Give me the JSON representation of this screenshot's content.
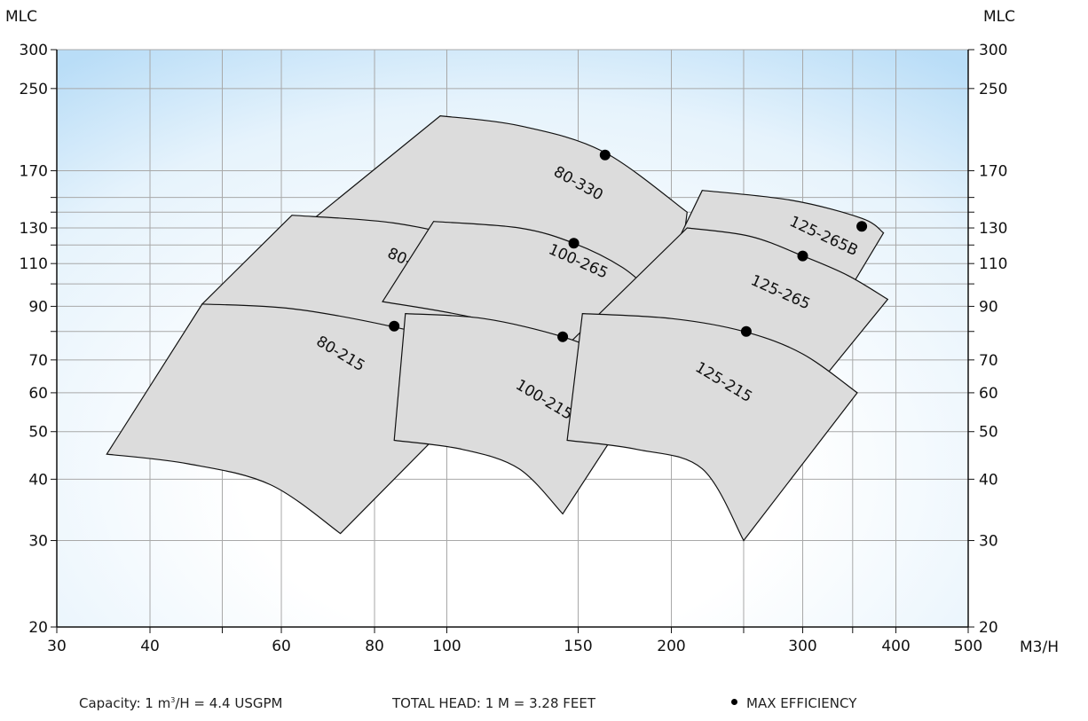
{
  "chart_data": {
    "type": "area",
    "y_unit_left": "MLC",
    "y_unit_right": "MLC",
    "x_unit": "M3/H",
    "x_scale": "log",
    "y_scale": "log",
    "xlim": [
      30,
      500
    ],
    "ylim": [
      20,
      300
    ],
    "x_ticks": [
      {
        "value": 30,
        "label": "30"
      },
      {
        "value": 40,
        "label": "40"
      },
      {
        "value": 50,
        "label": ""
      },
      {
        "value": 60,
        "label": "60"
      },
      {
        "value": 80,
        "label": "80"
      },
      {
        "value": 100,
        "label": "100"
      },
      {
        "value": 150,
        "label": "150"
      },
      {
        "value": 200,
        "label": "200"
      },
      {
        "value": 250,
        "label": ""
      },
      {
        "value": 300,
        "label": "300"
      },
      {
        "value": 350,
        "label": ""
      },
      {
        "value": 400,
        "label": "400"
      },
      {
        "value": 500,
        "label": "500"
      }
    ],
    "y_ticks": [
      {
        "value": 20,
        "label": "20"
      },
      {
        "value": 30,
        "label": "30"
      },
      {
        "value": 40,
        "label": "40"
      },
      {
        "value": 50,
        "label": "50"
      },
      {
        "value": 60,
        "label": "60"
      },
      {
        "value": 70,
        "label": "70"
      },
      {
        "value": 80,
        "label": ""
      },
      {
        "value": 90,
        "label": "90"
      },
      {
        "value": 100,
        "label": ""
      },
      {
        "value": 110,
        "label": "110"
      },
      {
        "value": 120,
        "label": ""
      },
      {
        "value": 130,
        "label": "130"
      },
      {
        "value": 140,
        "label": ""
      },
      {
        "value": 150,
        "label": ""
      },
      {
        "value": 170,
        "label": "170"
      },
      {
        "value": 250,
        "label": "250"
      },
      {
        "value": 300,
        "label": "300"
      }
    ],
    "grid": true,
    "series": [
      {
        "name": "80-330",
        "label_pos": [
          150,
          160
        ],
        "label_angle": 29,
        "top": [
          [
            98,
            220
          ],
          [
            125,
            210
          ],
          [
            162,
            186
          ],
          [
            210,
            140
          ]
        ],
        "bottom": [
          [
            62,
            125
          ],
          [
            88,
            112
          ],
          [
            140,
            78
          ],
          [
            195,
            58
          ]
        ],
        "efficiency_point": [
          163,
          183
        ]
      },
      {
        "name": "125-265B",
        "label_pos": [
          320,
          125
        ],
        "label_angle": 25,
        "top": [
          [
            220,
            155
          ],
          [
            290,
            148
          ],
          [
            360,
            136
          ],
          [
            385,
            127
          ]
        ],
        "bottom": [
          [
            200,
            115
          ],
          [
            250,
            105
          ],
          [
            300,
            95
          ],
          [
            330,
            86
          ]
        ],
        "efficiency_point": [
          360,
          131
        ]
      },
      {
        "name": "80-265",
        "label_pos": [
          90,
          110
        ],
        "label_angle": 24,
        "top": [
          [
            62,
            138
          ],
          [
            85,
            133
          ],
          [
            112,
            121
          ],
          [
            140,
            106
          ],
          [
            165,
            95
          ]
        ],
        "bottom": [
          [
            47,
            91
          ],
          [
            65,
            85
          ],
          [
            90,
            74
          ],
          [
            120,
            66
          ]
        ],
        "efficiency_point": [
          112,
          121
        ]
      },
      {
        "name": "100-265",
        "label_pos": [
          150,
          111
        ],
        "label_angle": 24,
        "top": [
          [
            96,
            134
          ],
          [
            125,
            130
          ],
          [
            148,
            121
          ],
          [
            172,
            108
          ],
          [
            190,
            95
          ]
        ],
        "bottom": [
          [
            82,
            92
          ],
          [
            110,
            85
          ],
          [
            150,
            74
          ],
          [
            175,
            65
          ]
        ],
        "efficiency_point": [
          148,
          121
        ]
      },
      {
        "name": "125-265",
        "label_pos": [
          280,
          96
        ],
        "label_angle": 24,
        "top": [
          [
            210,
            130
          ],
          [
            255,
            125
          ],
          [
            300,
            114
          ],
          [
            345,
            104
          ],
          [
            390,
            93
          ]
        ],
        "bottom": [
          [
            145,
            75
          ],
          [
            180,
            70
          ],
          [
            240,
            63
          ],
          [
            300,
            57
          ]
        ],
        "efficiency_point": [
          300,
          114
        ]
      },
      {
        "name": "80-215",
        "label_pos": [
          72,
          72
        ],
        "label_angle": 31,
        "top": [
          [
            47,
            91
          ],
          [
            62,
            89
          ],
          [
            84,
            82
          ],
          [
            105,
            75
          ],
          [
            120,
            68
          ]
        ],
        "bottom": [
          [
            35,
            45
          ],
          [
            45,
            43
          ],
          [
            58,
            39
          ],
          [
            72,
            31
          ]
        ],
        "efficiency_point": [
          85,
          82
        ]
      },
      {
        "name": "100-215",
        "label_pos": [
          135,
          58
        ],
        "label_angle": 31,
        "top": [
          [
            88,
            87
          ],
          [
            112,
            85
          ],
          [
            143,
            78
          ],
          [
            165,
            71
          ],
          [
            185,
            62
          ]
        ],
        "bottom": [
          [
            85,
            48
          ],
          [
            105,
            46
          ],
          [
            125,
            42
          ],
          [
            143,
            34
          ]
        ],
        "efficiency_point": [
          143,
          78
        ]
      },
      {
        "name": "125-215",
        "label_pos": [
          235,
          63
        ],
        "label_angle": 31,
        "top": [
          [
            152,
            87
          ],
          [
            200,
            85
          ],
          [
            250,
            80
          ],
          [
            300,
            72
          ],
          [
            355,
            60
          ]
        ],
        "bottom": [
          [
            145,
            48
          ],
          [
            180,
            46
          ],
          [
            220,
            42
          ],
          [
            250,
            30
          ]
        ],
        "efficiency_point": [
          252,
          80
        ]
      }
    ]
  },
  "footer": {
    "capacity_prefix": "Capacity: 1 m",
    "capacity_sup": "3",
    "capacity_suffix": "/H = 4.4 USGPM",
    "total_head": "TOTAL HEAD: 1 M = 3.28 FEET",
    "legend": "MAX EFFICIENCY"
  },
  "colors": {
    "curve_fill": "#dcdcdc",
    "curve_stroke": "#111111",
    "background_edge": "#b9ddf7",
    "grid": "#a8a8a8",
    "efficiency_dot": "#000000"
  }
}
